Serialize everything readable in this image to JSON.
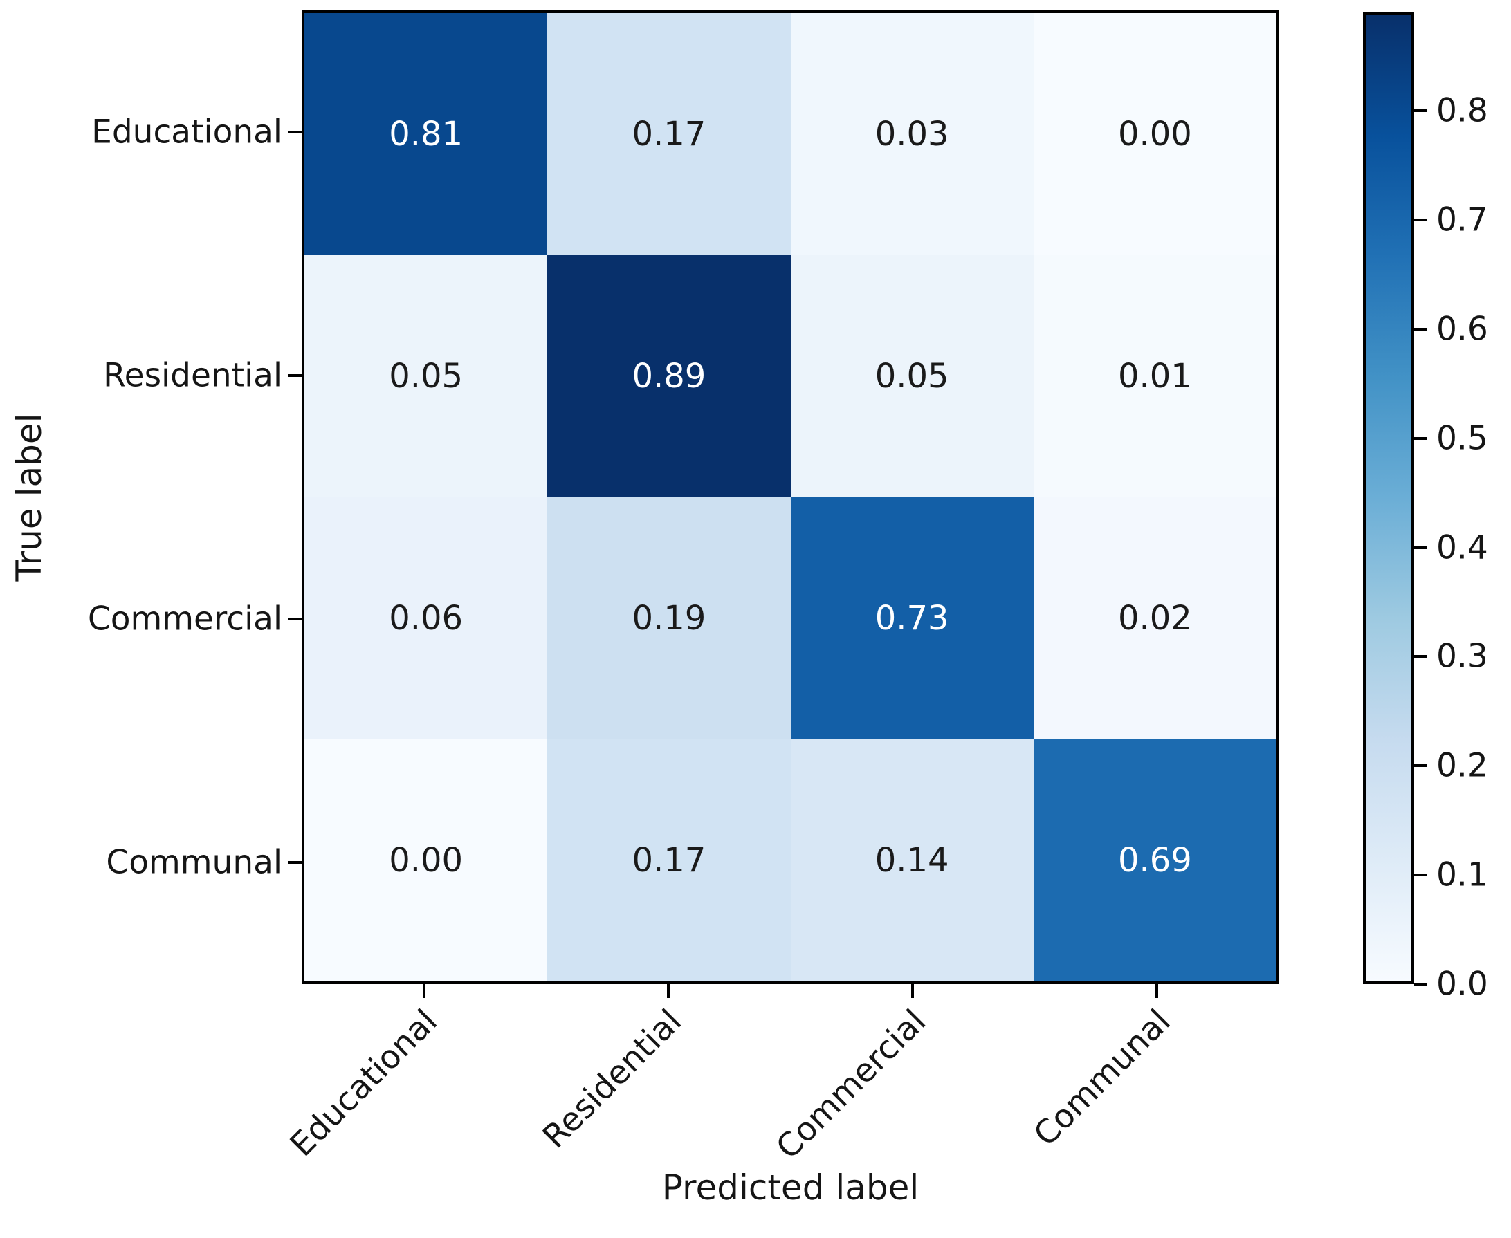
{
  "chart_data": {
    "type": "heatmap",
    "title": "",
    "xlabel": "Predicted label",
    "ylabel": "True label",
    "x_categories": [
      "Educational",
      "Residential",
      "Commercial",
      "Communal"
    ],
    "y_categories": [
      "Educational",
      "Residential",
      "Commercial",
      "Communal"
    ],
    "matrix": [
      [
        0.81,
        0.17,
        0.03,
        0.0
      ],
      [
        0.05,
        0.89,
        0.05,
        0.01
      ],
      [
        0.06,
        0.19,
        0.73,
        0.02
      ],
      [
        0.0,
        0.17,
        0.14,
        0.69
      ]
    ],
    "value_decimals": 2,
    "vmin": 0.0,
    "vmax": 0.89,
    "colormap": "Blues",
    "colormap_stops": [
      "#f7fbff",
      "#deebf7",
      "#c6dbef",
      "#9ecae1",
      "#6baed6",
      "#4292c6",
      "#2171b5",
      "#08519c",
      "#08306b"
    ],
    "colorbar_ticks": [
      0.0,
      0.1,
      0.2,
      0.3,
      0.4,
      0.5,
      0.6,
      0.7,
      0.8
    ],
    "colorbar_tick_decimals": 1,
    "colorbar_position": "right",
    "grid": false,
    "cell_text_color_light": "#ffffff",
    "cell_text_color_dark": "#1a1a1a",
    "axis_color": "#000000"
  }
}
